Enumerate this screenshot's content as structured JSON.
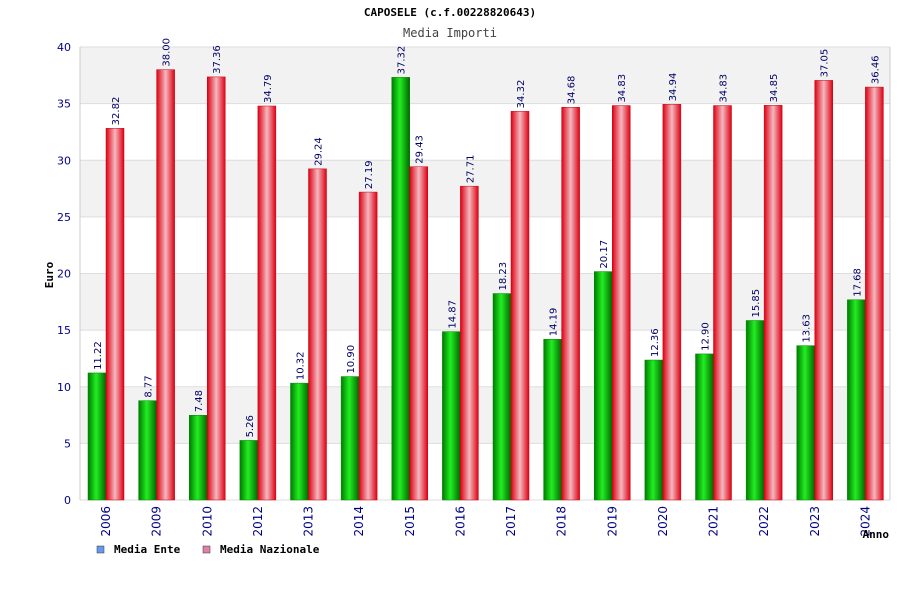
{
  "chart_data": {
    "type": "bar",
    "title": "CAPOSELE (c.f.00228820643)",
    "subtitle": "Media Importi",
    "xlabel": "Anno",
    "ylabel": "Euro",
    "ylim": [
      0,
      40
    ],
    "yticks": [
      "0",
      "5",
      "10",
      "15",
      "20",
      "25",
      "30",
      "35",
      "40"
    ],
    "categories": [
      "2006",
      "2009",
      "2010",
      "2012",
      "2013",
      "2014",
      "2015",
      "2016",
      "2017",
      "2018",
      "2019",
      "2020",
      "2021",
      "2022",
      "2023",
      "2024"
    ],
    "series": [
      {
        "name": "Media Ente",
        "color": "#00c000",
        "legend_color": "#6699ee",
        "values": [
          11.22,
          8.77,
          7.48,
          5.26,
          10.32,
          10.9,
          37.32,
          14.87,
          18.23,
          14.19,
          20.17,
          12.36,
          12.9,
          15.85,
          13.63,
          17.68
        ],
        "labels": [
          "11.22",
          "8.77",
          "7.48",
          "5.26",
          "10.32",
          "10.90",
          "37.32",
          "14.87",
          "18.23",
          "14.19",
          "20.17",
          "12.36",
          "12.90",
          "15.85",
          "13.63",
          "17.68"
        ]
      },
      {
        "name": "Media Nazionale",
        "color": "#ee1122",
        "legend_color": "#e080a8",
        "values": [
          32.82,
          38.0,
          37.36,
          34.79,
          29.24,
          27.19,
          29.43,
          27.71,
          34.32,
          34.68,
          34.83,
          34.94,
          34.83,
          34.85,
          37.05,
          36.46
        ],
        "labels": [
          "32.82",
          "38.00",
          "37.36",
          "34.79",
          "29.24",
          "27.19",
          "29.43",
          "27.71",
          "34.32",
          "34.68",
          "34.83",
          "34.94",
          "34.83",
          "34.85",
          "37.05",
          "36.46"
        ]
      }
    ],
    "grid": true,
    "legend_position": "bottom-left"
  }
}
